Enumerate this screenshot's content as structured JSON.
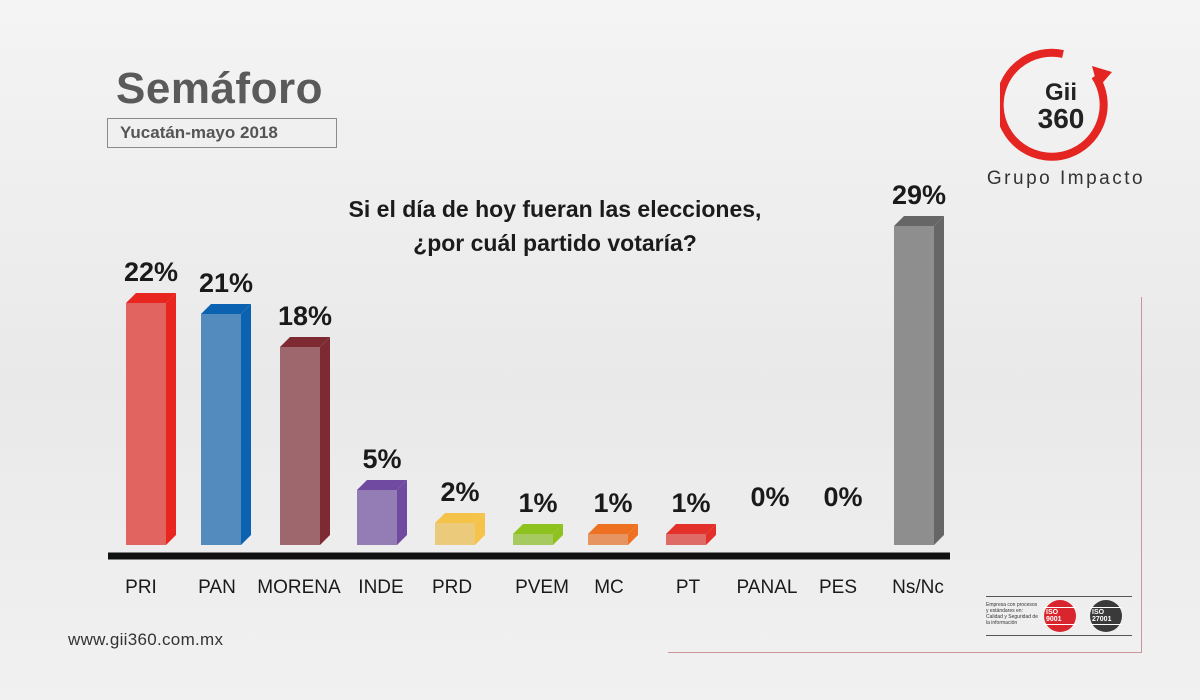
{
  "header": {
    "title": "Semáforo",
    "subtitle": "Yucatán-mayo 2018"
  },
  "logo": {
    "mark_line1": "Gii",
    "mark_line2": "360",
    "name": "Grupo Impacto",
    "ring_color": "#e42521"
  },
  "question": {
    "line1": "Si el día de hoy fueran las elecciones,",
    "line2": "¿por cuál partido votaría?"
  },
  "chart_data": {
    "type": "bar",
    "title": "Si el día de hoy fueran las elecciones, ¿por cuál partido votaría?",
    "xlabel": "",
    "ylabel": "",
    "unit": "%",
    "categories": [
      "PRI",
      "PAN",
      "MORENA",
      "INDE",
      "PRD",
      "PVEM",
      "MC",
      "PT",
      "PANAL",
      "PES",
      "Ns/Nc"
    ],
    "values": [
      22,
      21,
      18,
      5,
      2,
      1,
      1,
      1,
      0,
      0,
      29
    ],
    "value_labels": [
      "22%",
      "21%",
      "18%",
      "5%",
      "2%",
      "1%",
      "1%",
      "1%",
      "0%",
      "0%",
      "29%"
    ],
    "colors": [
      "#e8261f",
      "#0b62b0",
      "#7d2a33",
      "#6f4aa0",
      "#f5c24a",
      "#8dc21f",
      "#ee7021",
      "#e3302a",
      "#888888",
      "#888888",
      "#666666"
    ],
    "ylim": [
      0,
      29
    ],
    "grid": false,
    "legend": "none"
  },
  "footer": {
    "website": "www.gii360.com.mx",
    "iso_caption": "Empresa con procesos y estándares en: Calidad y Seguridad de la información",
    "iso_9001": "ISO 9001",
    "iso_27001": "ISO 27001"
  }
}
